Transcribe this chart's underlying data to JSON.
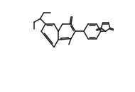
{
  "bg_color": "#ffffff",
  "line_color": "#1a1a1a",
  "lw": 1.1,
  "figsize": [
    1.9,
    1.3
  ],
  "dpi": 100,
  "bl": 0.092
}
